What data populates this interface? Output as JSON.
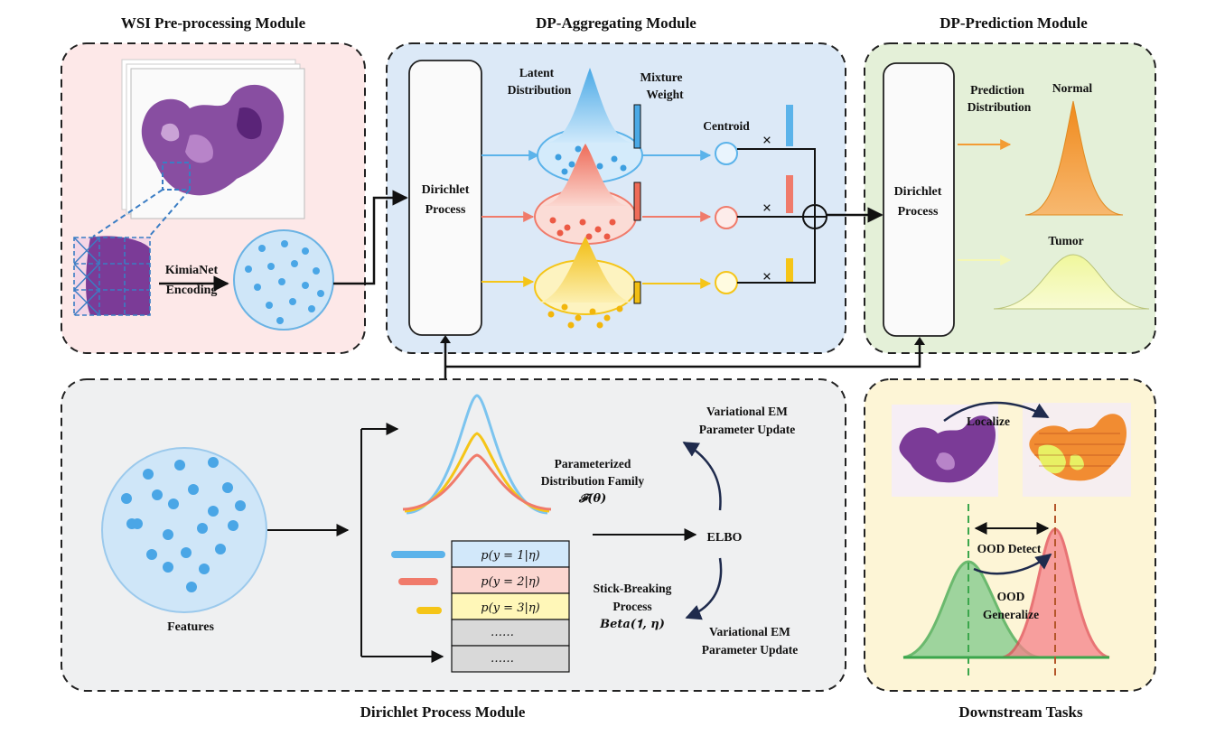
{
  "modules": {
    "wsi": {
      "title": "WSI Pre-processing Module",
      "encoder_line1": "KimiaNet",
      "encoder_line2": "Encoding"
    },
    "aggregating": {
      "title": "DP-Aggregating Module",
      "dp_line1": "Dirichlet",
      "dp_line2": "Process",
      "latent_line1": "Latent",
      "latent_line2": "Distribution",
      "mixture_line1": "Mixture",
      "mixture_line2": "Weight",
      "centroid": "Centroid",
      "multiply": "×"
    },
    "prediction": {
      "title": "DP-Prediction Module",
      "dp_line1": "Dirichlet",
      "dp_line2": "Process",
      "pred_line1": "Prediction",
      "pred_line2": "Distribution",
      "normal": "Normal",
      "tumor": "Tumor"
    },
    "dirichlet": {
      "title": "Dirichlet Process Module",
      "features": "Features",
      "param_line1": "Parameterized",
      "param_line2": "Distribution Family",
      "param_line3": "𝓕(𝜽)",
      "em_top_line1": "Variational EM",
      "em_top_line2": "Parameter Update",
      "elbo": "ELBO",
      "stick_line1": "Stick-Breaking",
      "stick_line2": "Process",
      "stick_line3": "𝑩𝒆𝒕𝒂(𝟏, 𝜼)",
      "em_bot_line1": "Variational EM",
      "em_bot_line2": "Parameter Update",
      "table_rows": [
        "p(y = 1|η)",
        "p(y = 2|η)",
        "p(y = 3|η)",
        "……",
        "……"
      ]
    },
    "downstream": {
      "title": "Downstream Tasks",
      "localize": "Localize",
      "ood_detect": "OOD Detect",
      "ood_line1": "OOD",
      "ood_line2": "Generalize"
    }
  },
  "colors": {
    "wsi_bg": "#fde8e8",
    "agg_bg": "#dce9f7",
    "pred_bg": "#e4f0d8",
    "dp_bg": "#eff0f1",
    "down_bg": "#fdf5d6",
    "blue": "#5bb3ea",
    "red": "#f07b6b",
    "yellow": "#f5c518",
    "orange": "#f39c34",
    "tissue": "#7b3b97"
  }
}
